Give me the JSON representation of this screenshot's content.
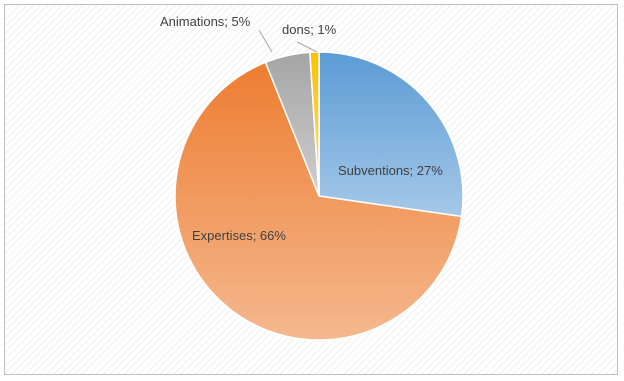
{
  "chart_data": {
    "type": "pie",
    "slices": [
      {
        "label": "Subventions",
        "value": 27,
        "color": "#5b9bd5",
        "label_text": "Subventions; 27%"
      },
      {
        "label": "Expertises",
        "value": 66,
        "color": "#ed7d31",
        "label_text": "Expertises; 66%"
      },
      {
        "label": "Animations",
        "value": 5,
        "color": "#a5a5a5",
        "label_text": "Animations; 5%"
      },
      {
        "label": "dons",
        "value": 1,
        "color": "#ffc000",
        "label_text": "dons; 1%"
      }
    ],
    "start_angle_deg": 0,
    "direction": "clockwise",
    "legend": "none",
    "title": ""
  }
}
